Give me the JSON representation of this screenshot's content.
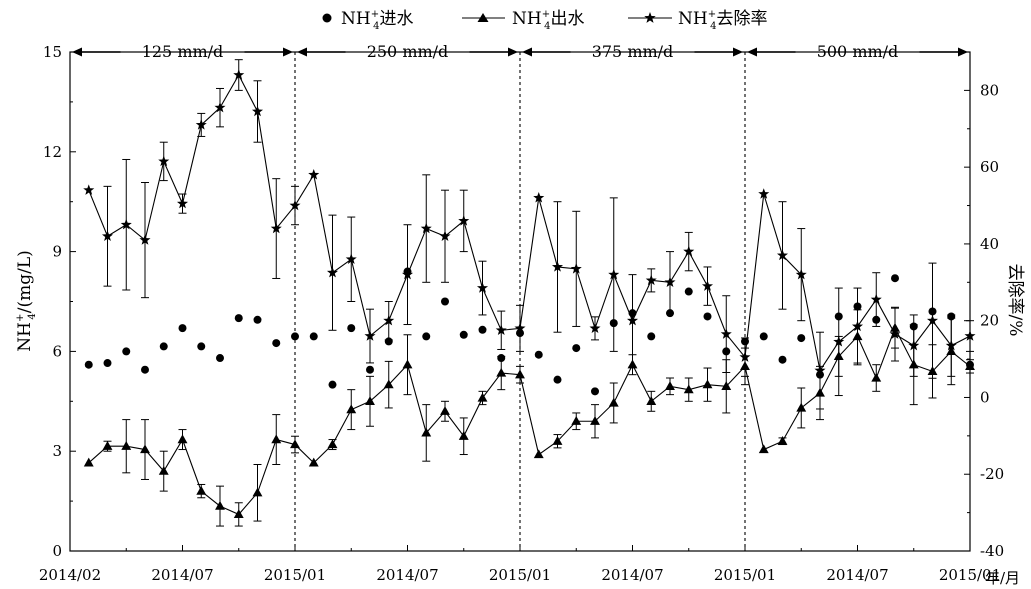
{
  "chart_data": {
    "type": "line",
    "xlabel_suffix": "年/月",
    "x_tick_labels": [
      "2014/02",
      "2014/07",
      "2015/01",
      "2014/07",
      "2015/01",
      "2014/07",
      "2015/01",
      "2014/07",
      "2015/01"
    ],
    "y_left": {
      "label_main": "NH",
      "label_sup": "+",
      "label_sub": "4",
      "label_rest": "/(mg/L)",
      "range": [
        0,
        15
      ],
      "ticks": [
        0,
        3,
        6,
        9,
        12,
        15
      ]
    },
    "y_right": {
      "label": "去除率/%",
      "range": [
        -40,
        90
      ],
      "ticks": [
        -40,
        -20,
        0,
        20,
        40,
        60,
        80
      ]
    },
    "phases": [
      {
        "label": "125 mm/d",
        "start": 0,
        "end": 12
      },
      {
        "label": "250 mm/d",
        "start": 12,
        "end": 24
      },
      {
        "label": "375 mm/d",
        "start": 24,
        "end": 36
      },
      {
        "label": "500 mm/d",
        "start": 36,
        "end": 48
      }
    ],
    "legend": [
      {
        "marker": "circle",
        "label_main": "NH",
        "label_sup": "+",
        "label_sub": "4",
        "label_rest": "进水"
      },
      {
        "marker": "triangle",
        "label_main": "NH",
        "label_sup": "+",
        "label_sub": "4",
        "label_rest": "出水"
      },
      {
        "marker": "star",
        "label_main": "NH",
        "label_sup": "+",
        "label_sub": "4",
        "label_rest": "去除率"
      }
    ],
    "x_range": [
      0,
      48
    ],
    "x_tick_positions": [
      0,
      6,
      12,
      18,
      24,
      30,
      36,
      42,
      48
    ],
    "series": [
      {
        "axis": "left",
        "marker": "circle",
        "line": false,
        "x": [
          1,
          2,
          3,
          4,
          5,
          6,
          7,
          8,
          9,
          10,
          11,
          12,
          13,
          14,
          15,
          16,
          17,
          18,
          19,
          20,
          21,
          22,
          23,
          24,
          25,
          26,
          27,
          28,
          29,
          30,
          31,
          32,
          33,
          34,
          35,
          36,
          37,
          38,
          39,
          40,
          41,
          42,
          43,
          44,
          45,
          46,
          47,
          48
        ],
        "y": [
          5.6,
          5.65,
          6.0,
          5.45,
          6.15,
          6.7,
          6.15,
          5.8,
          7.0,
          6.95,
          6.25,
          6.45,
          6.45,
          5.0,
          6.7,
          5.45,
          6.3,
          8.4,
          6.45,
          7.5,
          6.5,
          6.65,
          5.8,
          6.55,
          5.9,
          5.15,
          6.1,
          4.8,
          6.85,
          7.15,
          6.45,
          7.15,
          7.8,
          7.05,
          6.0,
          6.3,
          6.45,
          5.75,
          6.4,
          5.3,
          7.05,
          7.35,
          6.95,
          8.2,
          6.75,
          7.2,
          7.05,
          5.6
        ]
      },
      {
        "axis": "left",
        "marker": "triangle",
        "line": true,
        "x": [
          1,
          2,
          3,
          4,
          5,
          6,
          7,
          8,
          9,
          10,
          11,
          12,
          13,
          14,
          15,
          16,
          17,
          18,
          19,
          20,
          21,
          22,
          23,
          24,
          25,
          26,
          27,
          28,
          29,
          30,
          31,
          32,
          33,
          34,
          35,
          36,
          37,
          38,
          39,
          40,
          41,
          42,
          43,
          44,
          45,
          46,
          47,
          48
        ],
        "y": [
          2.65,
          3.15,
          3.15,
          3.05,
          2.4,
          3.35,
          1.8,
          1.35,
          1.1,
          1.75,
          3.35,
          3.2,
          2.65,
          3.2,
          4.25,
          4.5,
          5.0,
          5.6,
          3.55,
          4.2,
          3.45,
          4.6,
          5.35,
          5.3,
          2.9,
          3.3,
          3.9,
          3.9,
          4.45,
          5.6,
          4.5,
          4.95,
          4.85,
          5.0,
          4.95,
          5.55,
          3.05,
          3.3,
          4.3,
          4.75,
          5.85,
          6.45,
          5.2,
          6.7,
          5.6,
          5.4,
          6.0,
          5.55
        ],
        "err": [
          0,
          0.15,
          0.8,
          0.9,
          0.6,
          0.3,
          0.2,
          0.6,
          0.35,
          0.85,
          0.75,
          0.25,
          0,
          0.15,
          0.6,
          0.75,
          0.7,
          0.9,
          0.85,
          0.3,
          0.55,
          0.2,
          0.5,
          0.25,
          0,
          0.2,
          0.25,
          0.5,
          0.6,
          0.3,
          0.3,
          0.25,
          0.35,
          0.5,
          0.8,
          0.55,
          0,
          0.1,
          0.6,
          0.8,
          0.6,
          0.8,
          0.4,
          0.6,
          1.2,
          0.8,
          1.0,
          0.2
        ]
      },
      {
        "axis": "right",
        "marker": "star",
        "line": true,
        "x": [
          1,
          2,
          3,
          4,
          5,
          6,
          7,
          8,
          9,
          10,
          11,
          12,
          13,
          14,
          15,
          16,
          17,
          18,
          19,
          20,
          21,
          22,
          23,
          24,
          25,
          26,
          27,
          28,
          29,
          30,
          31,
          32,
          33,
          34,
          35,
          36,
          37,
          38,
          39,
          40,
          41,
          42,
          43,
          44,
          45,
          46,
          47,
          48
        ],
        "y": [
          54,
          42,
          45,
          41,
          61.5,
          50.5,
          71,
          75.5,
          84,
          74.5,
          44,
          50,
          58,
          32.5,
          36,
          16,
          20,
          32,
          44,
          42,
          46,
          28.5,
          17.5,
          18,
          52,
          34,
          33.5,
          18,
          32,
          20,
          30.5,
          30,
          38,
          29,
          16.5,
          10.5,
          53,
          37,
          32,
          7,
          14.5,
          18.5,
          25.5,
          16.5,
          13.5,
          20,
          13.5,
          16
        ],
        "err": [
          0,
          13,
          17,
          15,
          5,
          2.5,
          3,
          5,
          4,
          8,
          13,
          5,
          0,
          15,
          11,
          7,
          5,
          13,
          14,
          12,
          8,
          7,
          5,
          6,
          0,
          17,
          15,
          3,
          20,
          12,
          3,
          8,
          5,
          5,
          10,
          5,
          0,
          14,
          12,
          10,
          14,
          10,
          7,
          7,
          8,
          15,
          8,
          4
        ]
      }
    ]
  }
}
